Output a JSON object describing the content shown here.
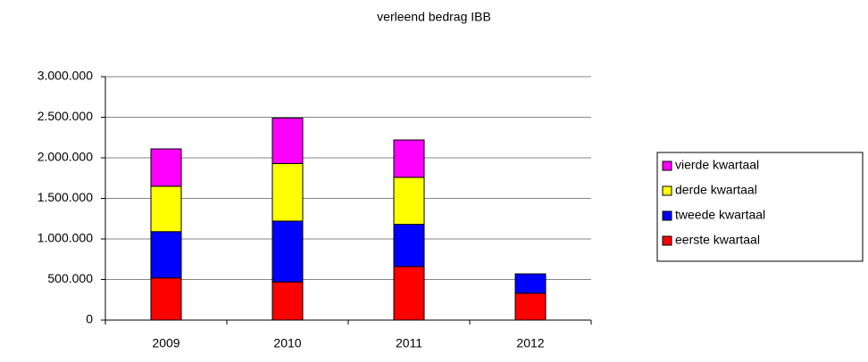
{
  "chart_data": {
    "type": "stacked-bar",
    "title": "verleend bedrag IBB",
    "categories": [
      "2009",
      "2010",
      "2011",
      "2012"
    ],
    "series": [
      {
        "name": "eerste kwartaal",
        "color": "#ff0000",
        "values": [
          520000,
          470000,
          660000,
          330000
        ]
      },
      {
        "name": "tweede kwartaal",
        "color": "#0000ff",
        "values": [
          570000,
          750000,
          520000,
          240000
        ]
      },
      {
        "name": "derde kwartaal",
        "color": "#ffff00",
        "values": [
          560000,
          710000,
          580000,
          null
        ]
      },
      {
        "name": "vierde kwartaal",
        "color": "#ff00ff",
        "values": [
          460000,
          560000,
          460000,
          null
        ]
      }
    ],
    "ylim": [
      0,
      3000000
    ],
    "yticks": [
      0,
      {
        "value": 500000,
        "label": "500.000"
      },
      {
        "value": 1000000,
        "label": "1.000.000"
      },
      {
        "value": 1500000,
        "label": "1.500.000"
      },
      {
        "value": 2000000,
        "label": "2.000.000"
      },
      {
        "value": 2500000,
        "label": "2.500.000"
      },
      {
        "value": 3000000,
        "label": "3.000.000"
      }
    ],
    "grid": true,
    "legend": "right"
  }
}
